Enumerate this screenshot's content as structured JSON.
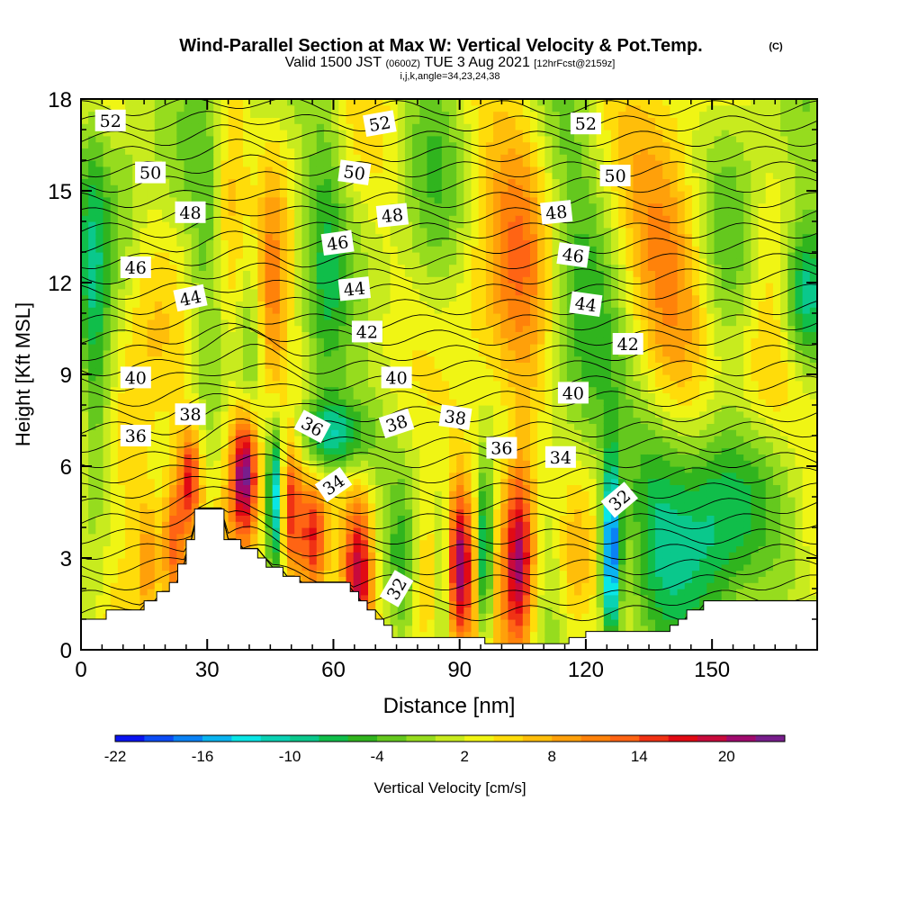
{
  "chart_data": {
    "type": "heatmap",
    "title": "Wind-Parallel Section at Max W: Vertical Velocity & Pot.Temp.",
    "title_mark": "(C)",
    "subtitle_parts": [
      "Valid 1500 JST",
      "(0600Z)",
      "TUE 3 Aug 2021",
      "[12hrFcst@2159z]"
    ],
    "subtitle2": "i,j,k,angle=34,23,24,38",
    "xlabel": "Distance [nm]",
    "ylabel": "Height [Kft MSL]",
    "xlim": [
      0,
      175
    ],
    "ylim": [
      0,
      18
    ],
    "x_ticks": [
      0,
      30,
      60,
      90,
      120,
      150
    ],
    "y_ticks": [
      0,
      3,
      6,
      9,
      12,
      15,
      18
    ],
    "colorbar": {
      "label": "Vertical Velocity [cm/s]",
      "range": [
        -22,
        24
      ],
      "step": 2,
      "tick_values": [
        -22,
        -16,
        -10,
        -4,
        2,
        8,
        14,
        20
      ],
      "colors": [
        "#0a14f0",
        "#0c4cf5",
        "#0a82f5",
        "#0ab4f0",
        "#0ae6e6",
        "#0ad2b4",
        "#0ac88c",
        "#10be4a",
        "#30b41e",
        "#64c81e",
        "#96dc1e",
        "#c8eb1e",
        "#f0f514",
        "#ffdc0a",
        "#ffbe0a",
        "#ffa00a",
        "#ff820a",
        "#ff6414",
        "#f03214",
        "#e10a14",
        "#c80a3c",
        "#a00a6e",
        "#781e8c"
      ]
    },
    "terrain": {
      "x": [
        0,
        5,
        6,
        12,
        15,
        18,
        21,
        23,
        25,
        27,
        33,
        34,
        36,
        38,
        40,
        42,
        44,
        46,
        48,
        50,
        52,
        62,
        64,
        66,
        68,
        70,
        72,
        74,
        82,
        84,
        92,
        96,
        100,
        104,
        108,
        112,
        116,
        118,
        120,
        124,
        130,
        136,
        138,
        140,
        142,
        144,
        146,
        148,
        150,
        175
      ],
      "height_kft": [
        1.0,
        1.0,
        1.3,
        1.3,
        1.6,
        1.9,
        2.2,
        2.8,
        3.6,
        4.6,
        4.6,
        3.6,
        3.6,
        3.3,
        3.3,
        3.0,
        2.7,
        2.7,
        2.4,
        2.4,
        2.2,
        2.2,
        1.9,
        1.6,
        1.3,
        1.0,
        0.8,
        0.4,
        0.4,
        0.4,
        0.4,
        0.2,
        0.2,
        0.2,
        0.2,
        0.2,
        0.4,
        0.4,
        0.6,
        0.6,
        0.6,
        0.6,
        0.6,
        0.8,
        1.0,
        1.3,
        1.3,
        1.6,
        1.6,
        1.6
      ]
    },
    "w_features": [
      {
        "x": 3,
        "z": 11,
        "sx": 2.5,
        "sz": 6,
        "w": -7
      },
      {
        "x": 12,
        "z": 6,
        "sx": 4,
        "sz": 3,
        "w": 6
      },
      {
        "x": 16,
        "z": 3,
        "sx": 2,
        "sz": 1.6,
        "w": 8
      },
      {
        "x": 22,
        "z": 3.5,
        "sx": 2,
        "sz": 1.6,
        "w": 12
      },
      {
        "x": 26,
        "z": 5.6,
        "sx": 1.8,
        "sz": 1.2,
        "w": 14
      },
      {
        "x": 30,
        "z": 12.5,
        "sx": 3,
        "sz": 5.5,
        "w": -4
      },
      {
        "x": 36,
        "z": 12.5,
        "sx": 3,
        "sz": 5.5,
        "w": 6
      },
      {
        "x": 40,
        "z": 12,
        "sx": 3.5,
        "sz": 5,
        "w": -5
      },
      {
        "x": 45,
        "z": 11,
        "sx": 2.5,
        "sz": 3,
        "w": 9
      },
      {
        "x": 39,
        "z": 5.8,
        "sx": 2.3,
        "sz": 1.5,
        "w": 23
      },
      {
        "x": 46,
        "z": 5.0,
        "sx": 1.1,
        "sz": 1.5,
        "w": -16
      },
      {
        "x": 50,
        "z": 4.5,
        "sx": 1.5,
        "sz": 1.8,
        "w": 12
      },
      {
        "x": 55,
        "z": 3.5,
        "sx": 2.5,
        "sz": 1.5,
        "w": 14
      },
      {
        "x": 60,
        "z": 7,
        "sx": 6,
        "sz": 0.9,
        "w": -12
      },
      {
        "x": 58,
        "z": 12,
        "sx": 3.5,
        "sz": 5,
        "w": -6
      },
      {
        "x": 66,
        "z": 2.5,
        "sx": 2.5,
        "sz": 1.8,
        "w": 17
      },
      {
        "x": 76,
        "z": 2.6,
        "sx": 1.8,
        "sz": 1.8,
        "w": -4
      },
      {
        "x": 82,
        "z": 2.5,
        "sx": 2.5,
        "sz": 2,
        "w": 6
      },
      {
        "x": 86,
        "z": 2.5,
        "sx": 1.5,
        "sz": 1.8,
        "w": -6
      },
      {
        "x": 90,
        "z": 2.8,
        "sx": 2,
        "sz": 1.8,
        "w": 17
      },
      {
        "x": 96,
        "z": 3.0,
        "sx": 1.2,
        "sz": 2,
        "w": -15
      },
      {
        "x": 104,
        "z": 3.0,
        "sx": 2.5,
        "sz": 2.2,
        "w": 18
      },
      {
        "x": 113,
        "z": 3.5,
        "sx": 3,
        "sz": 2,
        "w": -2
      },
      {
        "x": 126,
        "z": 3.2,
        "sx": 1.5,
        "sz": 2,
        "w": -22
      },
      {
        "x": 117,
        "z": 2.5,
        "sx": 3,
        "sz": 2,
        "w": 5
      },
      {
        "x": 150,
        "z": 4,
        "sx": 9,
        "sz": 3,
        "w": -11
      },
      {
        "x": 137,
        "z": 4,
        "sx": 4,
        "sz": 2.5,
        "w": -3
      },
      {
        "x": 84,
        "z": 14,
        "sx": 6,
        "sz": 5,
        "w": -4
      },
      {
        "x": 95,
        "z": 12,
        "sx": 7,
        "sz": 5,
        "w": 4
      },
      {
        "x": 105,
        "z": 11.5,
        "sx": 5,
        "sz": 5,
        "w": 6
      },
      {
        "x": 118,
        "z": 12,
        "sx": 6,
        "sz": 5,
        "w": -5
      },
      {
        "x": 140,
        "z": 13,
        "sx": 7,
        "sz": 3,
        "w": 9
      },
      {
        "x": 155,
        "z": 13,
        "sx": 5,
        "sz": 4,
        "w": -5
      },
      {
        "x": 172,
        "z": 11.5,
        "sx": 4,
        "sz": 1.8,
        "w": -14
      },
      {
        "x": 160,
        "z": 8.5,
        "sx": 8,
        "sz": 2,
        "w": 7
      },
      {
        "x": 130,
        "z": 7,
        "sx": 10,
        "sz": 2,
        "w": -3
      },
      {
        "x": 10,
        "z": 15,
        "sx": 4,
        "sz": 3,
        "w": -4
      }
    ],
    "contour_labels": [
      {
        "text": "52",
        "x": 7,
        "z": 17.3,
        "angle": 0
      },
      {
        "text": "50",
        "x": 16.5,
        "z": 15.6,
        "angle": 0
      },
      {
        "text": "48",
        "x": 26,
        "z": 14.3,
        "angle": 0
      },
      {
        "text": "46",
        "x": 13,
        "z": 12.5,
        "angle": 0
      },
      {
        "text": "44",
        "x": 26,
        "z": 11.5,
        "angle": -12
      },
      {
        "text": "40",
        "x": 13,
        "z": 8.9,
        "angle": 0
      },
      {
        "text": "38",
        "x": 26,
        "z": 7.7,
        "angle": 0
      },
      {
        "text": "36",
        "x": 13,
        "z": 7.0,
        "angle": 0
      },
      {
        "text": "52",
        "x": 71,
        "z": 17.2,
        "angle": -10
      },
      {
        "text": "50",
        "x": 65,
        "z": 15.6,
        "angle": 8
      },
      {
        "text": "48",
        "x": 74,
        "z": 14.2,
        "angle": -6
      },
      {
        "text": "46",
        "x": 61,
        "z": 13.3,
        "angle": -8
      },
      {
        "text": "44",
        "x": 65,
        "z": 11.8,
        "angle": -6
      },
      {
        "text": "42",
        "x": 68,
        "z": 10.4,
        "angle": 0
      },
      {
        "text": "40",
        "x": 75,
        "z": 8.9,
        "angle": 0
      },
      {
        "text": "38",
        "x": 75,
        "z": 7.4,
        "angle": -18
      },
      {
        "text": "36",
        "x": 55,
        "z": 7.3,
        "angle": 28
      },
      {
        "text": "34",
        "x": 60,
        "z": 5.4,
        "angle": -35
      },
      {
        "text": "32",
        "x": 75,
        "z": 2.0,
        "angle": -60
      },
      {
        "text": "38",
        "x": 89,
        "z": 7.6,
        "angle": 8
      },
      {
        "text": "36",
        "x": 100,
        "z": 6.6,
        "angle": 0
      },
      {
        "text": "52",
        "x": 120,
        "z": 17.2,
        "angle": 0
      },
      {
        "text": "50",
        "x": 127,
        "z": 15.5,
        "angle": 0
      },
      {
        "text": "48",
        "x": 113,
        "z": 14.3,
        "angle": -6
      },
      {
        "text": "46",
        "x": 117,
        "z": 12.9,
        "angle": 8
      },
      {
        "text": "44",
        "x": 120,
        "z": 11.3,
        "angle": 8
      },
      {
        "text": "42",
        "x": 130,
        "z": 10.0,
        "angle": 0
      },
      {
        "text": "40",
        "x": 117,
        "z": 8.4,
        "angle": 0
      },
      {
        "text": "34",
        "x": 114,
        "z": 6.3,
        "angle": 0
      },
      {
        "text": "32",
        "x": 128,
        "z": 4.9,
        "angle": -40
      }
    ]
  }
}
